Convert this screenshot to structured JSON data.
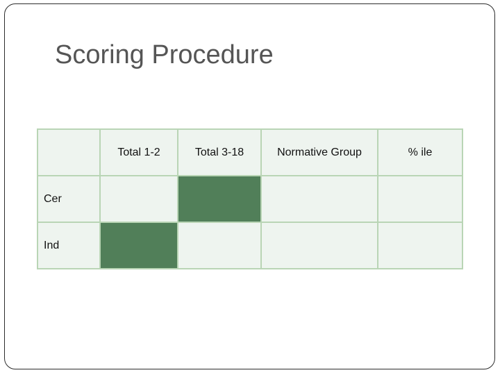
{
  "slide": {
    "title": "Scoring Procedure"
  },
  "table": {
    "headers": [
      "",
      "Total 1-2",
      "Total 3-18",
      "Normative Group",
      "% ile"
    ],
    "rows": [
      {
        "label": "Cer",
        "filled_columns": [
          2
        ]
      },
      {
        "label": "Ind",
        "filled_columns": [
          1
        ]
      }
    ]
  },
  "colors": {
    "title_text": "#555555",
    "cell_background": "#eef4ef",
    "cell_border": "#b9d5b5",
    "filled_cell": "#517f59"
  }
}
